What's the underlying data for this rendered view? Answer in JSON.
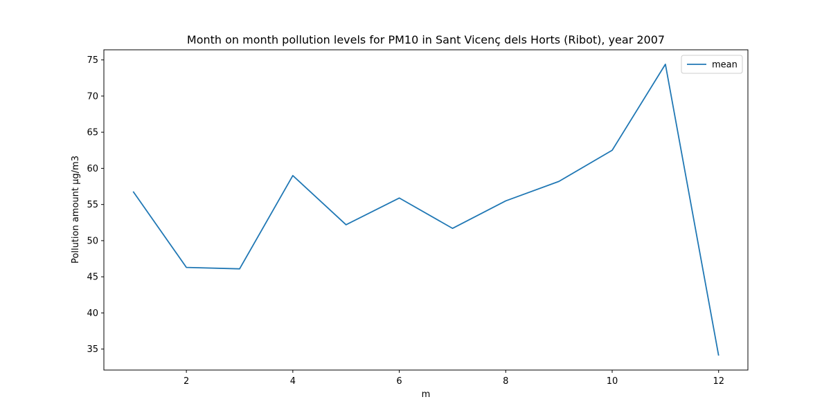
{
  "chart_data": {
    "type": "line",
    "title": "Month on month pollution levels for PM10 in Sant Vicenç dels Horts (Ribot), year 2007",
    "xlabel": "m",
    "ylabel": "Pollution amount μg/m3",
    "x": [
      1,
      2,
      3,
      4,
      5,
      6,
      7,
      8,
      9,
      10,
      11,
      12
    ],
    "series": [
      {
        "name": "mean",
        "color": "#1f77b4",
        "values": [
          56.8,
          46.3,
          46.1,
          59.0,
          52.2,
          55.9,
          51.7,
          55.5,
          58.2,
          62.5,
          74.4,
          34.1
        ]
      }
    ],
    "xlim": [
      0.45,
      12.55
    ],
    "ylim": [
      32.1,
      76.4
    ],
    "xticks": [
      2,
      4,
      6,
      8,
      10,
      12
    ],
    "yticks": [
      35,
      40,
      45,
      50,
      55,
      60,
      65,
      70,
      75
    ],
    "grid": false,
    "legend_position": "top-right"
  }
}
